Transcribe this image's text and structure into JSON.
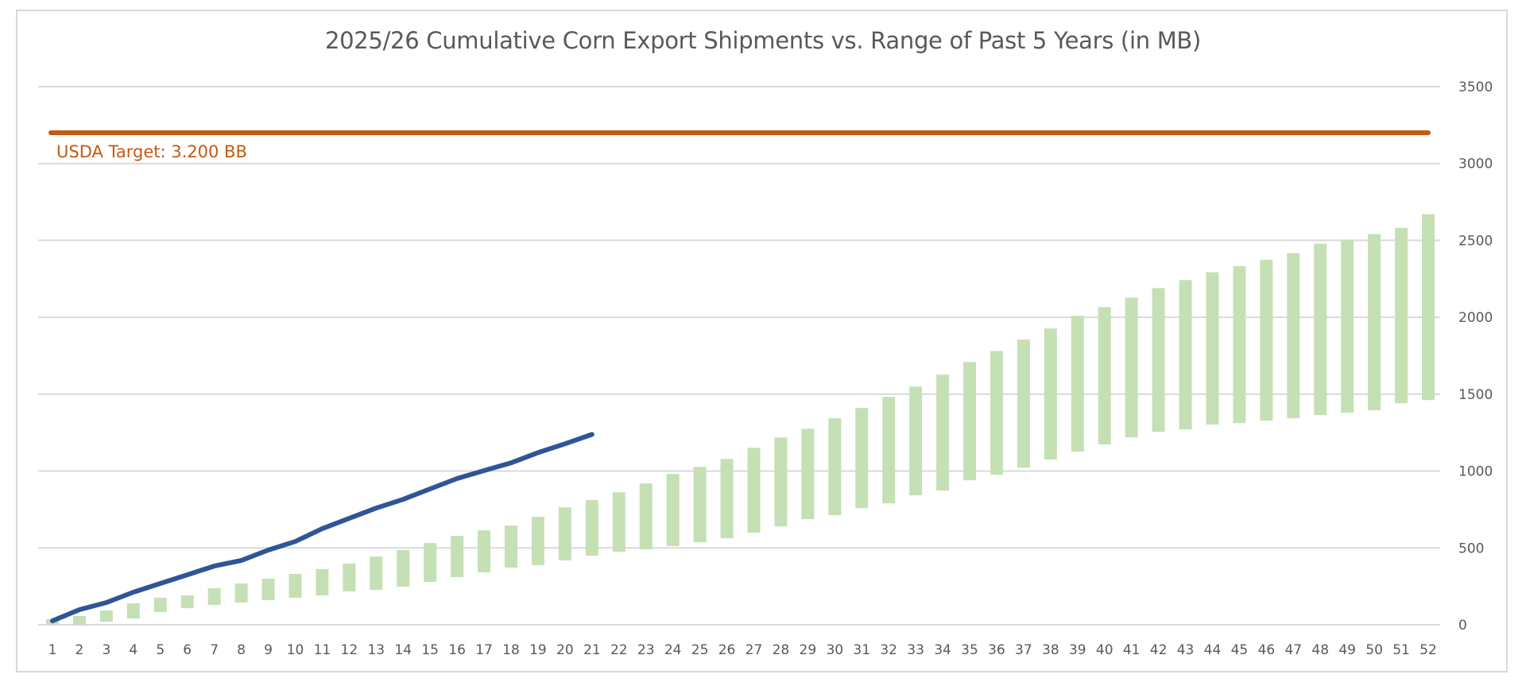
{
  "chart_data": {
    "type": "bar",
    "subtype": "floating-range-bars-with-line",
    "title": "2025/26 Cumulative Corn Export Shipments vs. Range of Past 5 Years (in MB)",
    "xlabel": "",
    "ylabel": "",
    "y_axis_position": "right",
    "ylim": [
      0,
      3500
    ],
    "yticks": [
      0,
      500,
      1000,
      1500,
      2000,
      2500,
      3000,
      3500
    ],
    "ytick_labels": [
      "0",
      "500",
      "1000",
      "1500",
      "2000",
      "2500",
      "3000",
      "3500"
    ],
    "grid": true,
    "legend": "none",
    "categories": [
      "1",
      "2",
      "3",
      "4",
      "5",
      "6",
      "7",
      "8",
      "9",
      "10",
      "11",
      "12",
      "13",
      "14",
      "15",
      "16",
      "17",
      "18",
      "19",
      "20",
      "21",
      "22",
      "23",
      "24",
      "25",
      "26",
      "27",
      "28",
      "29",
      "30",
      "31",
      "32",
      "33",
      "34",
      "35",
      "36",
      "37",
      "38",
      "39",
      "40",
      "41",
      "42",
      "43",
      "44",
      "45",
      "46",
      "47",
      "48",
      "49",
      "50",
      "51",
      "52"
    ],
    "series": [
      {
        "name": "Range of Past 5 Years",
        "kind": "range-bar",
        "color": "#c5e0b4",
        "low": [
          5,
          0,
          20,
          41,
          83,
          108,
          129,
          145,
          160,
          176,
          191,
          217,
          227,
          248,
          279,
          310,
          341,
          372,
          388,
          419,
          450,
          475,
          491,
          512,
          537,
          563,
          599,
          640,
          687,
          713,
          759,
          790,
          842,
          873,
          940,
          976,
          1022,
          1075,
          1126,
          1173,
          1219,
          1255,
          1271,
          1302,
          1312,
          1328,
          1343,
          1364,
          1379,
          1395,
          1441,
          1462
        ],
        "high": [
          36,
          57,
          93,
          140,
          176,
          191,
          238,
          269,
          300,
          331,
          362,
          398,
          444,
          486,
          532,
          578,
          614,
          645,
          702,
          764,
          811,
          862,
          919,
          981,
          1027,
          1079,
          1151,
          1218,
          1275,
          1343,
          1410,
          1482,
          1549,
          1627,
          1709,
          1781,
          1855,
          1927,
          2009,
          2066,
          2128,
          2190,
          2242,
          2293,
          2333,
          2374,
          2417,
          2479,
          2505,
          2541,
          2582,
          2670
        ]
      },
      {
        "name": "2025/26 Cumulative Shipments",
        "kind": "line",
        "color": "#2f5597",
        "values": [
          26,
          98,
          145,
          212,
          269,
          325,
          382,
          418,
          486,
          542,
          625,
          692,
          759,
          816,
          884,
          951,
          1003,
          1053,
          1120,
          1177,
          1238
        ]
      },
      {
        "name": "USDA Target",
        "kind": "hline",
        "color": "#c55a11",
        "value": 3200
      }
    ],
    "annotations": [
      {
        "text": "USDA Target: 3.200 BB",
        "color": "#c55a11",
        "near": "target-line-left"
      }
    ]
  }
}
